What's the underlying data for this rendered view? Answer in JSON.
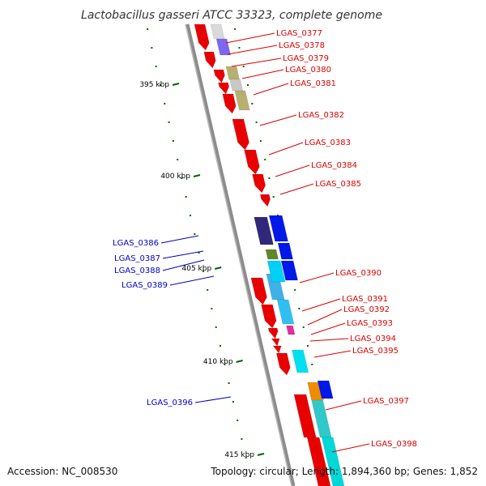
{
  "title": "Lactobacillus gasseri ATCC 33323, complete genome",
  "footer": {
    "accession": "Accession: NC_008530",
    "summary": "Topology: circular; Length: 1,894,360 bp; Genes: 1,852"
  },
  "colors": {
    "forward_label": "#dd0000",
    "reverse_label": "#0000cc",
    "backbone": "#888888",
    "ticks": "#006600"
  },
  "ticks": [
    "395 kbp",
    "400 kbp",
    "405 kbp",
    "410 kbp",
    "415 kbp"
  ],
  "genes": [
    {
      "label": "LGAS_0377",
      "strand": "+"
    },
    {
      "label": "LGAS_0378",
      "strand": "+"
    },
    {
      "label": "LGAS_0379",
      "strand": "+"
    },
    {
      "label": "LGAS_0380",
      "strand": "+"
    },
    {
      "label": "LGAS_0381",
      "strand": "+"
    },
    {
      "label": "LGAS_0382",
      "strand": "+"
    },
    {
      "label": "LGAS_0383",
      "strand": "+"
    },
    {
      "label": "LGAS_0384",
      "strand": "+"
    },
    {
      "label": "LGAS_0385",
      "strand": "+"
    },
    {
      "label": "LGAS_0386",
      "strand": "-"
    },
    {
      "label": "LGAS_0387",
      "strand": "-"
    },
    {
      "label": "LGAS_0388",
      "strand": "-"
    },
    {
      "label": "LGAS_0389",
      "strand": "-"
    },
    {
      "label": "LGAS_0390",
      "strand": "+"
    },
    {
      "label": "LGAS_0391",
      "strand": "+"
    },
    {
      "label": "LGAS_0392",
      "strand": "+"
    },
    {
      "label": "LGAS_0393",
      "strand": "+"
    },
    {
      "label": "LGAS_0394",
      "strand": "+"
    },
    {
      "label": "LGAS_0395",
      "strand": "+"
    },
    {
      "label": "LGAS_0396",
      "strand": "-"
    },
    {
      "label": "LGAS_0397",
      "strand": "+"
    },
    {
      "label": "LGAS_0398",
      "strand": "+"
    }
  ]
}
